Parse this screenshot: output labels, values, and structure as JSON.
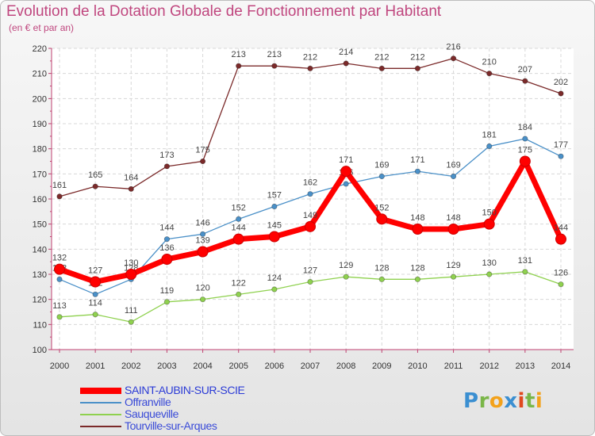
{
  "title": "Evolution de la Dotation Globale de Fonctionnement par Habitant",
  "subtitle": "(en € et par an)",
  "logo": "Proxiti",
  "chart_data": {
    "type": "line",
    "title": "Evolution de la Dotation Globale de Fonctionnement par Habitant",
    "subtitle": "(en € et par an)",
    "xlabel": "",
    "ylabel": "",
    "x": [
      "2000",
      "2001",
      "2002",
      "2003",
      "2004",
      "2005",
      "2006",
      "2007",
      "2008",
      "2009",
      "2010",
      "2011",
      "2012",
      "2013",
      "2014"
    ],
    "ylim": [
      100,
      220
    ],
    "yticks": [
      100,
      110,
      120,
      130,
      140,
      150,
      160,
      170,
      180,
      190,
      200,
      210,
      220
    ],
    "grid": true,
    "legend_position": "bottom-left",
    "series": [
      {
        "name": "Tourville-sur-Arques",
        "color": "#7b2a2a",
        "values": [
          161,
          165,
          164,
          173,
          175,
          213,
          213,
          212,
          214,
          212,
          212,
          216,
          210,
          207,
          202
        ]
      },
      {
        "name": "Offranville",
        "color": "#4a90c8",
        "values": [
          128,
          122,
          128,
          144,
          146,
          152,
          157,
          162,
          166,
          169,
          171,
          169,
          181,
          184,
          177
        ]
      },
      {
        "name": "Sauqueville",
        "color": "#8fd14f",
        "values": [
          113,
          114,
          111,
          119,
          120,
          122,
          124,
          127,
          129,
          128,
          128,
          129,
          130,
          131,
          126
        ]
      },
      {
        "name": "SAINT-AUBIN-SUR-SCIE",
        "color": "#ff0000",
        "values": [
          132,
          127,
          130,
          136,
          139,
          144,
          145,
          149,
          171,
          152,
          148,
          148,
          150,
          175,
          144
        ]
      }
    ],
    "legend_order": [
      "SAINT-AUBIN-SUR-SCIE",
      "Offranville",
      "Sauqueville",
      "Tourville-sur-Arques"
    ]
  }
}
